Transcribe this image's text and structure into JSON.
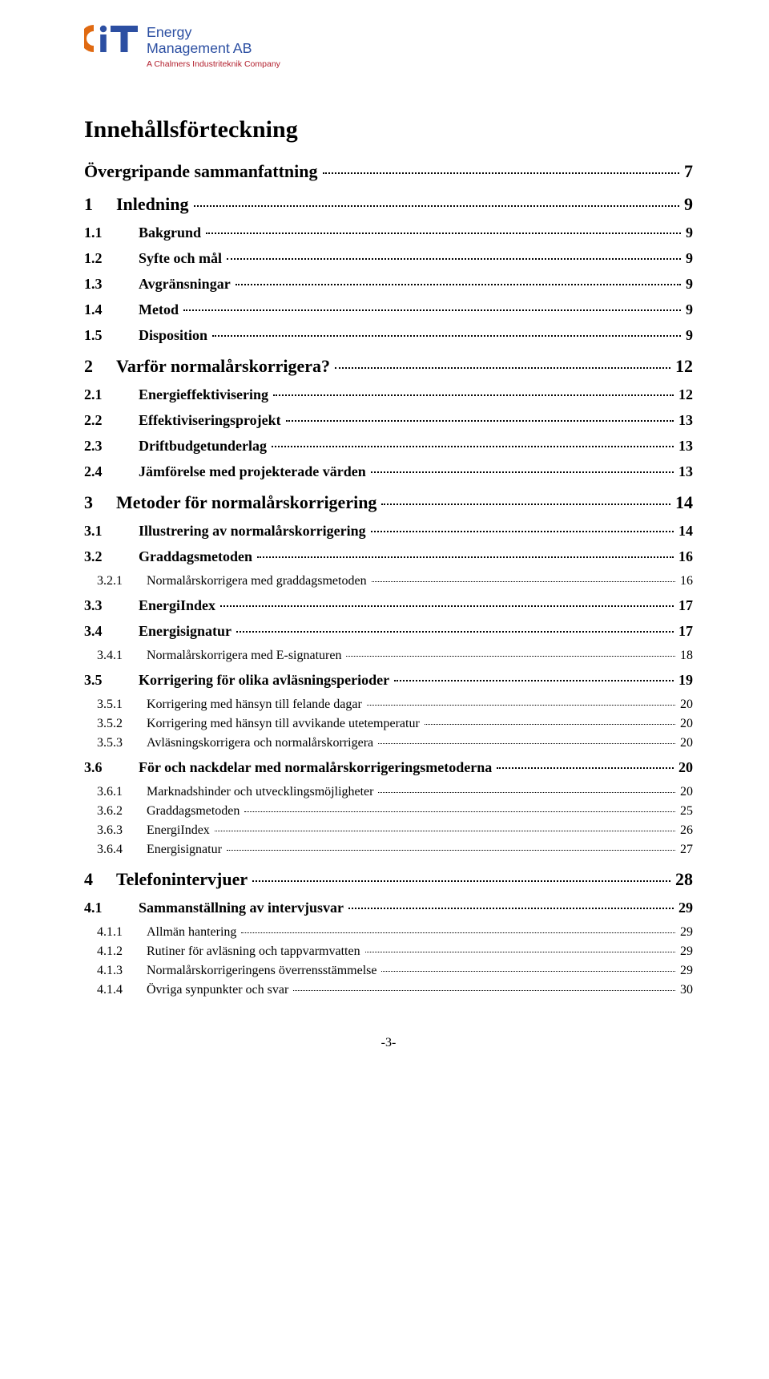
{
  "logo": {
    "line1": "Energy",
    "line2": "Management AB",
    "line3": "A Chalmers Industriteknik Company",
    "color_primary": "#2c4fa2",
    "color_accent": "#e06a12",
    "color_subline": "#b21f2d"
  },
  "title": "Innehållsförteckning",
  "page_number": "-3-",
  "toc": [
    {
      "level": 0,
      "num": "",
      "label": "Övergripande sammanfattning",
      "page": "7"
    },
    {
      "level": 0,
      "num": "1",
      "label": "Inledning",
      "page": "9"
    },
    {
      "level": 1,
      "num": "1.1",
      "label": "Bakgrund",
      "page": "9"
    },
    {
      "level": 1,
      "num": "1.2",
      "label": "Syfte och mål",
      "page": "9"
    },
    {
      "level": 1,
      "num": "1.3",
      "label": "Avgränsningar",
      "page": "9"
    },
    {
      "level": 1,
      "num": "1.4",
      "label": "Metod",
      "page": "9"
    },
    {
      "level": 1,
      "num": "1.5",
      "label": "Disposition",
      "page": "9"
    },
    {
      "level": 0,
      "num": "2",
      "label": "Varför normalårskorrigera?",
      "page": "12"
    },
    {
      "level": 1,
      "num": "2.1",
      "label": "Energieffektivisering",
      "page": "12"
    },
    {
      "level": 1,
      "num": "2.2",
      "label": "Effektiviseringsprojekt",
      "page": "13"
    },
    {
      "level": 1,
      "num": "2.3",
      "label": "Driftbudgetunderlag",
      "page": "13"
    },
    {
      "level": 1,
      "num": "2.4",
      "label": "Jämförelse med projekterade värden",
      "page": "13"
    },
    {
      "level": 0,
      "num": "3",
      "label": "Metoder för normalårskorrigering",
      "page": "14"
    },
    {
      "level": 1,
      "num": "3.1",
      "label": "Illustrering av normalårskorrigering",
      "page": "14"
    },
    {
      "level": 1,
      "num": "3.2",
      "label": "Graddagsmetoden",
      "page": "16"
    },
    {
      "level": 2,
      "num": "3.2.1",
      "label": "Normalårskorrigera med graddagsmetoden",
      "page": "16"
    },
    {
      "level": 1,
      "num": "3.3",
      "label": "EnergiIndex",
      "page": "17"
    },
    {
      "level": 1,
      "num": "3.4",
      "label": "Energisignatur",
      "page": "17"
    },
    {
      "level": 2,
      "num": "3.4.1",
      "label": "Normalårskorrigera med E-signaturen",
      "page": "18"
    },
    {
      "level": 1,
      "num": "3.5",
      "label": "Korrigering för olika avläsningsperioder",
      "page": "19"
    },
    {
      "level": 2,
      "num": "3.5.1",
      "label": "Korrigering med hänsyn till felande dagar",
      "page": "20"
    },
    {
      "level": 2,
      "num": "3.5.2",
      "label": "Korrigering med hänsyn till avvikande utetemperatur",
      "page": "20"
    },
    {
      "level": 2,
      "num": "3.5.3",
      "label": "Avläsningskorrigera och normalårskorrigera",
      "page": "20"
    },
    {
      "level": 1,
      "num": "3.6",
      "label": "För och nackdelar med normalårskorrigeringsmetoderna",
      "page": "20"
    },
    {
      "level": 2,
      "num": "3.6.1",
      "label": "Marknadshinder och utvecklingsmöjligheter",
      "page": "20"
    },
    {
      "level": 2,
      "num": "3.6.2",
      "label": "Graddagsmetoden",
      "page": "25"
    },
    {
      "level": 2,
      "num": "3.6.3",
      "label": "EnergiIndex",
      "page": "26"
    },
    {
      "level": 2,
      "num": "3.6.4",
      "label": "Energisignatur",
      "page": "27"
    },
    {
      "level": 0,
      "num": "4",
      "label": "Telefonintervjuer",
      "page": "28"
    },
    {
      "level": 1,
      "num": "4.1",
      "label": "Sammanställning av intervjusvar",
      "page": "29"
    },
    {
      "level": 2,
      "num": "4.1.1",
      "label": "Allmän hantering",
      "page": "29"
    },
    {
      "level": 2,
      "num": "4.1.2",
      "label": "Rutiner för avläsning och tappvarmvatten",
      "page": "29"
    },
    {
      "level": 2,
      "num": "4.1.3",
      "label": "Normalårskorrigeringens överrensstämmelse",
      "page": "29"
    },
    {
      "level": 2,
      "num": "4.1.4",
      "label": "Övriga synpunkter och svar",
      "page": "30"
    }
  ]
}
